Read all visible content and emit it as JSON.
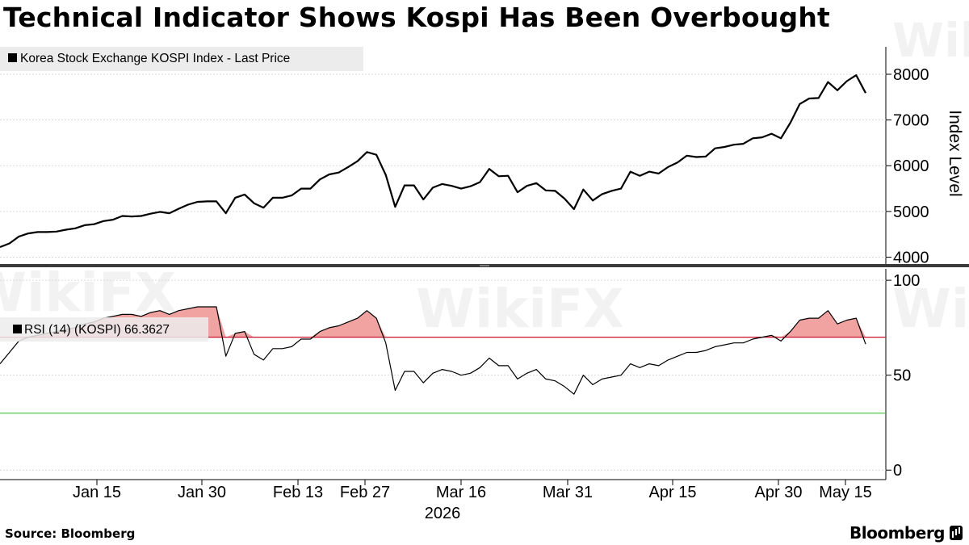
{
  "title": "Technical Indicator Shows Kospi Has Been Overbought",
  "source": "Source:  Bloomberg",
  "brand": "Bloomberg",
  "watermark": "WikiFX",
  "colors": {
    "price_line": "#000000",
    "rsi_line": "#000000",
    "overbought_line": "#c8102e",
    "oversold_line": "#3cc43c",
    "overbought_fill": "#e0342f",
    "legend_bg": "#ececec",
    "grid": "#d9d9d9",
    "divider": "#444444"
  },
  "chart_data": [
    {
      "type": "line",
      "legend": "Korea Stock Exchange KOSPI Index - Last Price",
      "ylabel": "Index Level",
      "y_ticks": [
        "4000",
        "5000",
        "6000",
        "7000",
        "8000"
      ],
      "ylim": [
        3850,
        8600
      ],
      "grid": true,
      "series": [
        {
          "name": "Korea Stock Exchange KOSPI Index - Last Price",
          "values": [
            4220,
            4300,
            4450,
            4520,
            4550,
            4550,
            4560,
            4600,
            4630,
            4700,
            4720,
            4790,
            4820,
            4900,
            4890,
            4900,
            4950,
            4990,
            4960,
            5060,
            5150,
            5210,
            5220,
            5220,
            4960,
            5300,
            5370,
            5180,
            5080,
            5300,
            5300,
            5350,
            5500,
            5500,
            5700,
            5810,
            5850,
            5970,
            6100,
            6300,
            6240,
            5800,
            5100,
            5570,
            5570,
            5260,
            5520,
            5600,
            5560,
            5500,
            5550,
            5640,
            5930,
            5770,
            5780,
            5420,
            5560,
            5620,
            5460,
            5450,
            5280,
            5050,
            5480,
            5240,
            5380,
            5450,
            5500,
            5870,
            5780,
            5870,
            5830,
            5970,
            6070,
            6220,
            6190,
            6200,
            6380,
            6410,
            6460,
            6480,
            6600,
            6620,
            6700,
            6600,
            6940,
            7350,
            7470,
            7480,
            7830,
            7650,
            7850,
            7980,
            7590
          ]
        }
      ]
    },
    {
      "type": "line",
      "legend": "RSI (14) (KOSPI) 66.3627",
      "y_ticks": [
        "0",
        "50",
        "100"
      ],
      "ylim": [
        -5,
        106
      ],
      "overbought_level": 70,
      "oversold_level": 30,
      "x_ticks": [
        "Jan 15",
        "Jan 30",
        "Feb 13",
        "Feb 27",
        "Mar 16",
        "Mar 31",
        "Apr 15",
        "Apr 30",
        "May 15"
      ],
      "x_year": "2026",
      "series": [
        {
          "name": "RSI (14) (KOSPI)",
          "values": [
            56,
            62,
            68,
            70,
            71,
            72,
            73,
            74,
            75,
            77,
            78,
            80,
            81,
            82,
            82,
            81,
            83,
            84,
            82,
            84,
            85,
            86,
            86,
            86,
            60,
            72,
            73,
            61,
            58,
            64,
            64,
            65,
            69,
            69,
            73,
            75,
            76,
            78,
            80,
            84,
            80,
            67,
            42,
            52,
            52,
            46,
            51,
            53,
            52,
            50,
            51,
            54,
            59,
            55,
            55,
            48,
            51,
            53,
            48,
            47,
            44,
            40,
            50,
            45,
            48,
            49,
            50,
            56,
            54,
            56,
            55,
            58,
            60,
            62,
            62,
            63,
            65,
            66,
            67,
            67,
            69,
            70,
            71,
            68,
            73,
            79,
            80,
            80,
            84,
            77,
            79,
            80,
            66.3627
          ]
        }
      ]
    }
  ]
}
